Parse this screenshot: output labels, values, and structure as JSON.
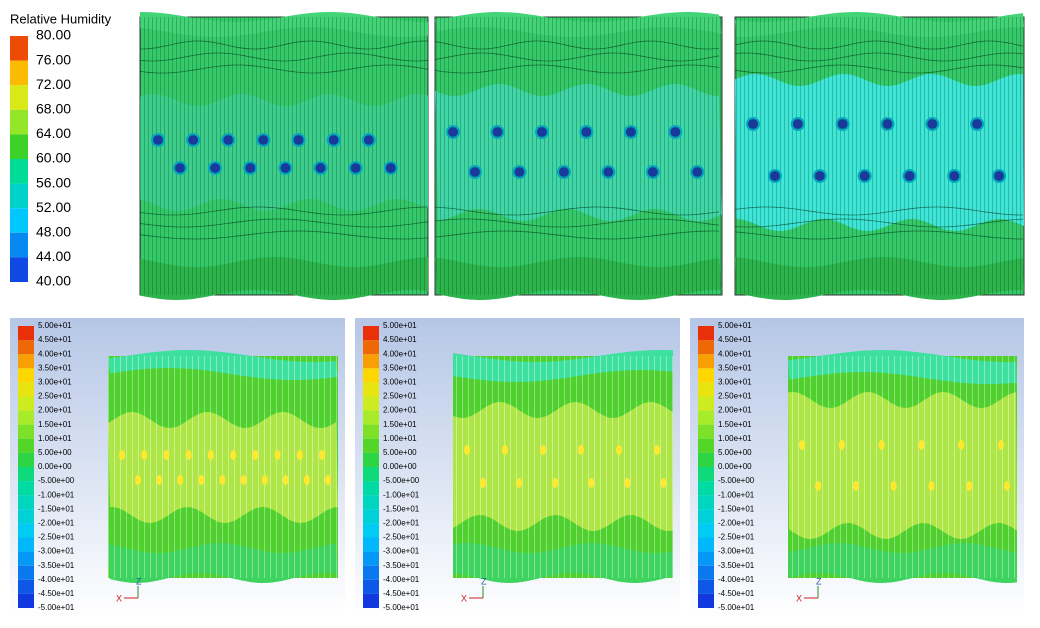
{
  "top_legend": {
    "title": "Relative Humidity",
    "labels": [
      "80.00",
      "76.00",
      "72.00",
      "68.00",
      "64.00",
      "60.00",
      "56.00",
      "52.00",
      "48.00",
      "44.00",
      "40.00"
    ]
  },
  "bottom_legend": {
    "labels": [
      "5.00e+01",
      "4.50e+01",
      "4.00e+01",
      "3.50e+01",
      "3.00e+01",
      "2.50e+01",
      "2.00e+01",
      "1.50e+01",
      "1.00e+01",
      "5.00e+00",
      "0.00e+00",
      "-5.00e+00",
      "-1.00e+01",
      "-1.50e+01",
      "-2.00e+01",
      "-2.50e+01",
      "-3.00e+01",
      "-3.50e+01",
      "-4.00e+01",
      "-4.50e+01",
      "-5.00e+01"
    ]
  },
  "axes": {
    "z": "Z",
    "x": "X"
  }
}
